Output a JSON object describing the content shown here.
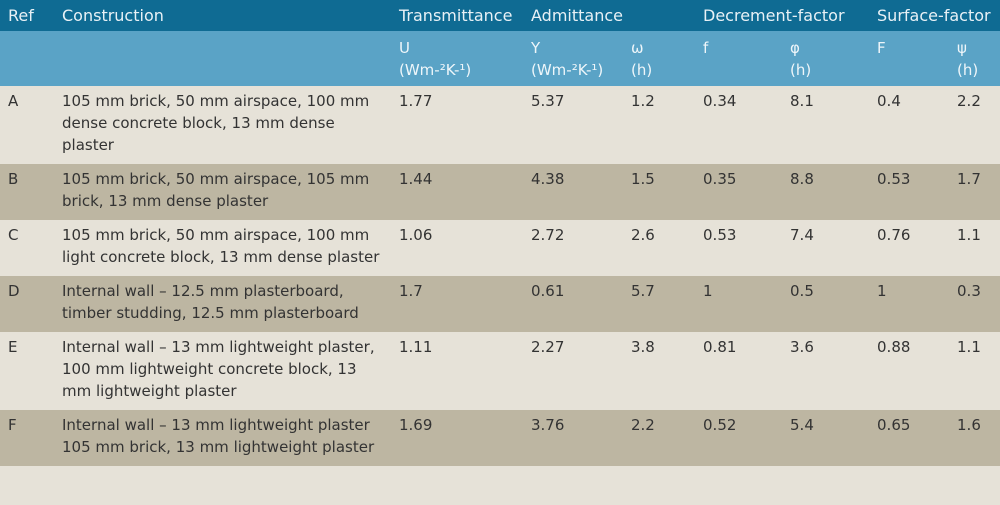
{
  "header": {
    "ref": "Ref",
    "construction": "Construction",
    "transmittance": "Transmittance",
    "admittance": "Admittance",
    "decrement_factor": "Decrement-factor",
    "surface_factor": "Surface-factor"
  },
  "subheader": {
    "u": "U",
    "u_unit": "(Wm-²K-¹)",
    "y": "Y",
    "y_unit": "(Wm-²K-¹)",
    "omega": "ω",
    "omega_unit": "(h)",
    "f": "f",
    "phi": "φ",
    "phi_unit": "(h)",
    "F": "F",
    "psi": "ψ",
    "psi_unit": "(h)"
  },
  "rows": [
    {
      "ref": "A",
      "construction": "105 mm brick, 50 mm airspace, 100 mm dense concrete block, 13 mm dense plaster",
      "u": "1.77",
      "y": "5.37",
      "omega": "1.2",
      "f": "0.34",
      "phi": "8.1",
      "F": "0.4",
      "psi": "2.2"
    },
    {
      "ref": "B",
      "construction": "105 mm brick, 50 mm airspace, 105 mm brick, 13 mm dense plaster",
      "u": "1.44",
      "y": "4.38",
      "omega": "1.5",
      "f": "0.35",
      "phi": "8.8",
      "F": "0.53",
      "psi": "1.7"
    },
    {
      "ref": "C",
      "construction": "105 mm brick, 50 mm airspace, 100 mm light concrete block, 13 mm dense plaster",
      "u": "1.06",
      "y": "2.72",
      "omega": "2.6",
      "f": "0.53",
      "phi": "7.4",
      "F": "0.76",
      "psi": "1.1"
    },
    {
      "ref": "D",
      "construction": "Internal wall – 12.5 mm plasterboard, timber studding, 12.5 mm plasterboard",
      "u": "1.7",
      "y": "0.61",
      "omega": "5.7",
      "f": "1",
      "phi": "0.5",
      "F": "1",
      "psi": "0.3"
    },
    {
      "ref": "E",
      "construction": "Internal wall – 13 mm lightweight plaster, 100 mm lightweight concrete block, 13 mm lightweight plaster",
      "u": "1.11",
      "y": "2.27",
      "omega": "3.8",
      "f": "0.81",
      "phi": "3.6",
      "F": "0.88",
      "psi": "1.1"
    },
    {
      "ref": "F",
      "construction": "Internal wall – 13 mm lightweight plaster 105 mm brick, 13 mm lightweight plaster",
      "u": "1.69",
      "y": "3.76",
      "omega": "2.2",
      "f": "0.52",
      "phi": "5.4",
      "F": "0.65",
      "psi": "1.6"
    }
  ],
  "colors": {
    "header_dark": "#0f6b93",
    "header_light": "#5aa3c6",
    "row_light": "#e6e2d8",
    "row_dark": "#bdb6a2"
  }
}
